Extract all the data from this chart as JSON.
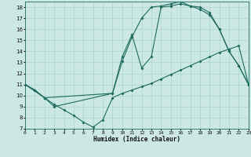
{
  "xlabel": "Humidex (Indice chaleur)",
  "bg_color": "#cce8e4",
  "line_color": "#1e6b5e",
  "grid_color": "#aad4cc",
  "xlim": [
    0,
    23
  ],
  "ylim": [
    7,
    18.5
  ],
  "xticks": [
    0,
    1,
    2,
    3,
    4,
    5,
    6,
    7,
    8,
    9,
    10,
    11,
    12,
    13,
    14,
    15,
    16,
    17,
    18,
    19,
    20,
    21,
    22,
    23
  ],
  "yticks": [
    7,
    8,
    9,
    10,
    11,
    12,
    13,
    14,
    15,
    16,
    17,
    18
  ],
  "line1_x": [
    0,
    1,
    2,
    3,
    4,
    5,
    6,
    7,
    8,
    9,
    10,
    11,
    12,
    13,
    14,
    15,
    16,
    17,
    18,
    19,
    20,
    21,
    22,
    23
  ],
  "line1_y": [
    11.0,
    10.5,
    9.8,
    9.2,
    8.7,
    8.2,
    7.6,
    7.15,
    7.8,
    9.8,
    10.2,
    10.5,
    10.8,
    11.1,
    11.5,
    11.9,
    12.3,
    12.7,
    13.1,
    13.5,
    13.9,
    14.2,
    14.5,
    11.0
  ],
  "line2_x": [
    0,
    1,
    2,
    3,
    9,
    10,
    11,
    12,
    13,
    14,
    15,
    16,
    17,
    18,
    19,
    20,
    21,
    22,
    23
  ],
  "line2_y": [
    11.0,
    10.5,
    9.8,
    9.0,
    10.2,
    13.5,
    15.5,
    12.5,
    13.5,
    18.0,
    18.1,
    18.3,
    18.1,
    18.0,
    17.5,
    16.0,
    14.0,
    12.7,
    11.0
  ],
  "line3_x": [
    0,
    2,
    9,
    10,
    11,
    12,
    13,
    14,
    15,
    16,
    17,
    18,
    19,
    20,
    21,
    22,
    23
  ],
  "line3_y": [
    11.0,
    9.8,
    10.2,
    13.1,
    15.3,
    17.0,
    18.0,
    18.1,
    18.3,
    18.5,
    18.1,
    17.8,
    17.3,
    16.0,
    14.0,
    12.7,
    11.0
  ]
}
